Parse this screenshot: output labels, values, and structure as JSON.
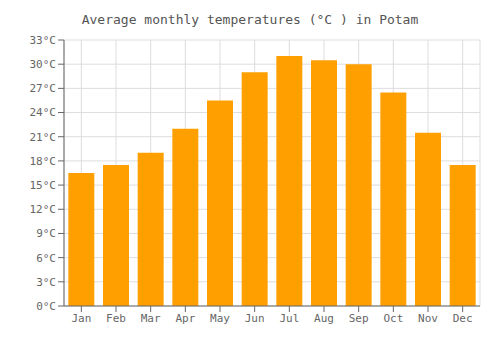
{
  "chart_data": {
    "type": "bar",
    "title": "Average monthly temperatures (°C ) in Potam",
    "categories": [
      "Jan",
      "Feb",
      "Mar",
      "Apr",
      "May",
      "Jun",
      "Jul",
      "Aug",
      "Sep",
      "Oct",
      "Nov",
      "Dec"
    ],
    "values": [
      16.5,
      17.5,
      19.0,
      22.0,
      25.5,
      29.0,
      31.0,
      30.5,
      30.0,
      26.5,
      21.5,
      17.5
    ],
    "color": "#FFA000",
    "ylim": [
      0,
      33
    ],
    "yticks": [
      {
        "value": 0,
        "label": "0°C"
      },
      {
        "value": 3,
        "label": "3°C"
      },
      {
        "value": 6,
        "label": "6°C"
      },
      {
        "value": 9,
        "label": "9°C"
      },
      {
        "value": 12,
        "label": "12°C"
      },
      {
        "value": 15,
        "label": "15°C"
      },
      {
        "value": 18,
        "label": "18°C"
      },
      {
        "value": 21,
        "label": "21°C"
      },
      {
        "value": 24,
        "label": "24°C"
      },
      {
        "value": 27,
        "label": "27°C"
      },
      {
        "value": 30,
        "label": "30°C"
      },
      {
        "value": 33,
        "label": "33°C"
      }
    ],
    "grid": true
  }
}
